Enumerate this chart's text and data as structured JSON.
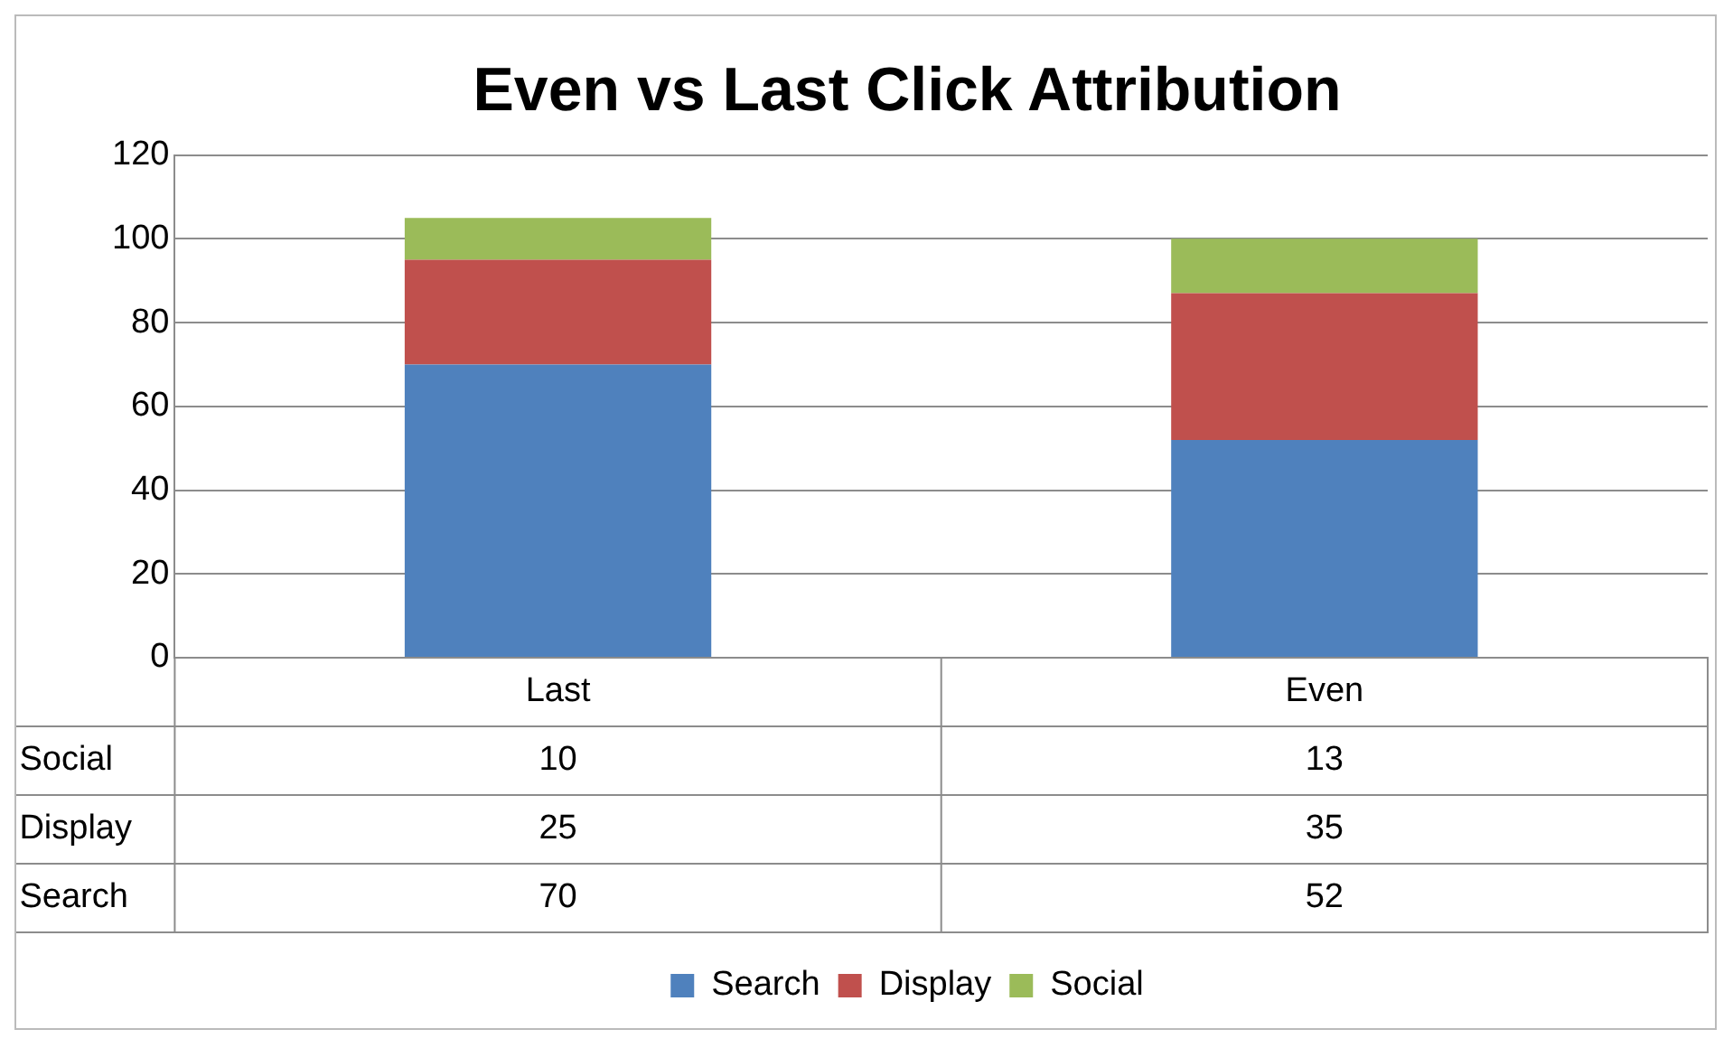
{
  "chart_data": {
    "type": "bar",
    "title": "Even vs Last Click Attribution",
    "categories": [
      "Last",
      "Even"
    ],
    "stacked": true,
    "series": [
      {
        "name": "Search",
        "color": "#4f81bd",
        "values": [
          70,
          52
        ]
      },
      {
        "name": "Display",
        "color": "#c0504d",
        "values": [
          25,
          35
        ]
      },
      {
        "name": "Social",
        "color": "#9bbb59",
        "values": [
          10,
          13
        ]
      }
    ],
    "ylim": [
      0,
      120
    ],
    "yticks": [
      0,
      20,
      40,
      60,
      80,
      100,
      120
    ],
    "grid": "y",
    "legend": "bottom",
    "data_labels": true
  }
}
